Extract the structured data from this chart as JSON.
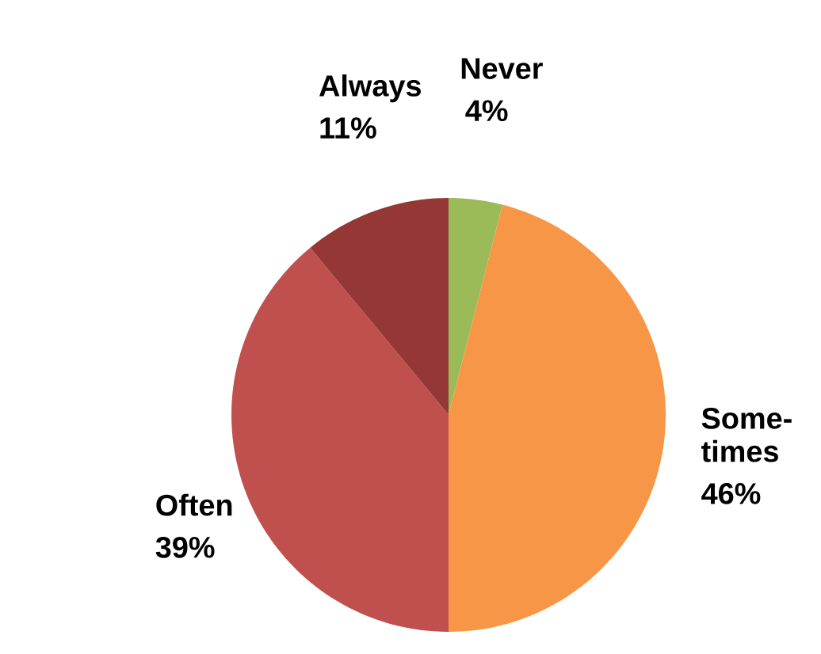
{
  "chart_data": {
    "type": "pie",
    "categories": [
      "Never",
      "Some-times",
      "Often",
      "Always"
    ],
    "values": [
      4,
      46,
      39,
      11
    ],
    "colors": [
      "#9bbb59",
      "#f79646",
      "#c0504d",
      "#953735"
    ],
    "value_labels": [
      "4%",
      "46%",
      "39%",
      "11%"
    ]
  }
}
